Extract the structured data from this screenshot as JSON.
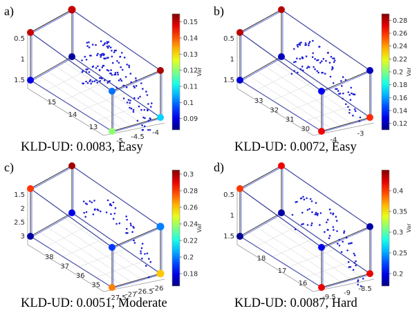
{
  "panels": [
    {
      "id": "a",
      "label": "a)",
      "caption": "KLD-UD: 0.0083, Easy",
      "left_ticks": [
        "0.5",
        "1",
        "1.5"
      ],
      "bottom_left_ticks": [
        "15",
        "14",
        "13"
      ],
      "bottom_right_ticks": [
        "-5",
        "-4.5",
        "-4"
      ],
      "colorbar": {
        "label": "Var",
        "ticks": [
          "0.15",
          "0.14",
          "0.13",
          "0.12",
          "0.11",
          "0.1",
          "0.09"
        ],
        "min": 0.083,
        "max": 0.155
      },
      "vertices": [
        0.15,
        0.15,
        0.152,
        0.1,
        0.09,
        0.085,
        0.107,
        0.12
      ],
      "highlighted": [
        1
      ],
      "curves": 4,
      "density": 150
    },
    {
      "id": "b",
      "label": "b)",
      "caption": "KLD-UD: 0.0072, Easy",
      "left_ticks": [
        "0.5",
        "1",
        "1.5"
      ],
      "bottom_left_ticks": [
        "33",
        "32",
        "31",
        "30"
      ],
      "bottom_right_ticks": [
        "-4",
        "-3"
      ],
      "colorbar": {
        "label": "Var",
        "ticks": [
          "0.28",
          "0.26",
          "0.24",
          "0.22",
          "0.2",
          "0.18",
          "0.16",
          "0.14",
          "0.12"
        ],
        "min": 0.11,
        "max": 0.29
      },
      "vertices": [
        0.28,
        0.28,
        0.12,
        0.13,
        0.125,
        0.12,
        0.26,
        0.27
      ],
      "highlighted": [],
      "curves": 3,
      "density": 90
    },
    {
      "id": "c",
      "label": "c)",
      "caption": "KLD-UD: 0.0051, Moderate",
      "left_ticks": [
        "1.5",
        "2",
        "2.5",
        "3"
      ],
      "bottom_left_ticks": [
        "38",
        "37",
        "36",
        "35"
      ],
      "bottom_right_ticks": [
        "-27.5",
        "-27",
        "-26.5",
        "-26"
      ],
      "colorbar": {
        "label": "Var",
        "ticks": [
          "0.3",
          "0.28",
          "0.26",
          "0.24",
          "0.22",
          "0.2",
          "0.18"
        ],
        "min": 0.165,
        "max": 0.305
      },
      "vertices": [
        0.28,
        0.3,
        0.2,
        0.19,
        0.17,
        0.18,
        0.26,
        0.27
      ],
      "highlighted": [
        2,
        6
      ],
      "curves": 2,
      "density": 50
    },
    {
      "id": "d",
      "label": "d)",
      "caption": "KLD-UD: 0.0087, Hard",
      "left_ticks": [
        "0.5",
        "1",
        "1.5"
      ],
      "bottom_left_ticks": [
        "18",
        "17",
        "16"
      ],
      "bottom_right_ticks": [
        "-9.5",
        "-9",
        "-8.5"
      ],
      "colorbar": {
        "label": "Var",
        "ticks": [
          "0.4",
          "0.35",
          "0.3",
          "0.25",
          "0.2"
        ],
        "min": 0.17,
        "max": 0.45
      },
      "vertices": [
        0.4,
        0.42,
        0.18,
        0.2,
        0.175,
        0.18,
        0.42,
        0.42
      ],
      "highlighted": [],
      "curves": 3,
      "density": 70
    }
  ]
}
